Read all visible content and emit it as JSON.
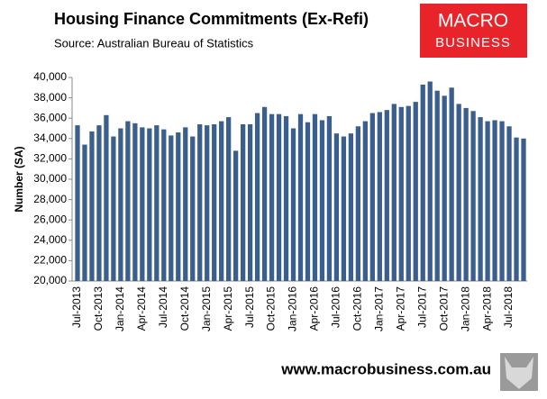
{
  "chart_data": {
    "type": "bar",
    "title": "Housing  Finance Commitments (Ex-Refi)",
    "subtitle": "Source: Australian Bureau of Statistics",
    "y_label": "Number (SA)",
    "categories": [
      "Jul-2013",
      null,
      null,
      "Oct-2013",
      null,
      null,
      "Jan-2014",
      null,
      null,
      "Apr-2014",
      null,
      null,
      "Jul-2014",
      null,
      null,
      "Oct-2014",
      null,
      null,
      "Jan-2015",
      null,
      null,
      "Apr-2015",
      null,
      null,
      "Jul-2015",
      null,
      null,
      "Oct-2015",
      null,
      null,
      "Jan-2016",
      null,
      null,
      "Apr-2016",
      null,
      null,
      "Jul-2016",
      null,
      null,
      "Oct-2016",
      null,
      null,
      "Jan-2017",
      null,
      null,
      "Apr-2017",
      null,
      null,
      "Jul-2017",
      null,
      null,
      "Oct-2017",
      null,
      null,
      "Jan-2018",
      null,
      null,
      "Apr-2018",
      null,
      null,
      "Jul-2018",
      null,
      null
    ],
    "values": [
      35300,
      33400,
      34700,
      35300,
      36300,
      34200,
      35000,
      35700,
      35500,
      35100,
      35000,
      35300,
      34900,
      34300,
      34600,
      35100,
      34200,
      35400,
      35300,
      35400,
      35700,
      36100,
      32800,
      35400,
      35400,
      36500,
      37100,
      36400,
      36400,
      36200,
      35000,
      36400,
      35600,
      36400,
      35800,
      36200,
      34500,
      34200,
      34500,
      35200,
      35700,
      36500,
      36600,
      36800,
      37400,
      37100,
      37200,
      37600,
      39300,
      39600,
      38700,
      38200,
      39000,
      37400,
      37000,
      36700,
      36100,
      35700,
      35800,
      35700,
      35200,
      34100,
      34000
    ],
    "color": "#3b5f8d",
    "ylim": [
      20000,
      40000
    ],
    "yticks": [
      {
        "value": 20000,
        "label": "20,000"
      },
      {
        "value": 22000,
        "label": "22,000"
      },
      {
        "value": 24000,
        "label": "24,000"
      },
      {
        "value": 26000,
        "label": "26,000"
      },
      {
        "value": 28000,
        "label": "28,000"
      },
      {
        "value": 30000,
        "label": "30,000"
      },
      {
        "value": 32000,
        "label": "32,000"
      },
      {
        "value": 34000,
        "label": "34,000"
      },
      {
        "value": 36000,
        "label": "36,000"
      },
      {
        "value": 38000,
        "label": "38,000"
      },
      {
        "value": 40000,
        "label": "40,000"
      }
    ],
    "grid": false
  },
  "logo": {
    "line1": "MACRO",
    "line2": "BUSINESS"
  },
  "footer": "www.macrobusiness.com.au"
}
